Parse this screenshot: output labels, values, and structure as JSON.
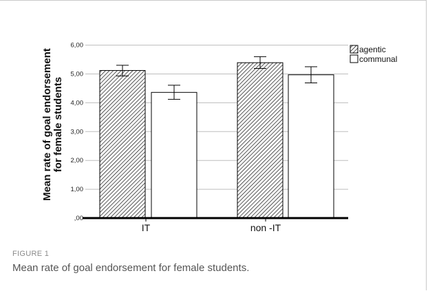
{
  "figure": {
    "label": "FIGURE 1",
    "caption": "Mean rate of goal endorsement for female students."
  },
  "chart_data": {
    "type": "bar",
    "ylabel_line1": "Mean rate of goal endorsement",
    "ylabel_line2": "for female students",
    "xlabel": "",
    "categories": [
      "IT",
      "non -IT"
    ],
    "yticks": [
      ",00",
      "1,00",
      "2,00",
      "3,00",
      "4,00",
      "5,00",
      "6,00"
    ],
    "ylim": [
      0,
      6.3
    ],
    "grid": true,
    "legend_position": "right",
    "series": [
      {
        "name": "agentic",
        "values": [
          5.12,
          5.39
        ],
        "err_low": [
          4.93,
          5.19
        ],
        "err_high": [
          5.3,
          5.6
        ],
        "pattern": "hatched"
      },
      {
        "name": "communal",
        "values": [
          4.36,
          4.97
        ],
        "err_low": [
          4.12,
          4.69
        ],
        "err_high": [
          4.61,
          5.25
        ],
        "pattern": "white"
      }
    ],
    "colors": {
      "bar_stroke": "#000000",
      "hatch": "#000000",
      "grid": "#bdbdbd",
      "axis": "#000000"
    }
  }
}
